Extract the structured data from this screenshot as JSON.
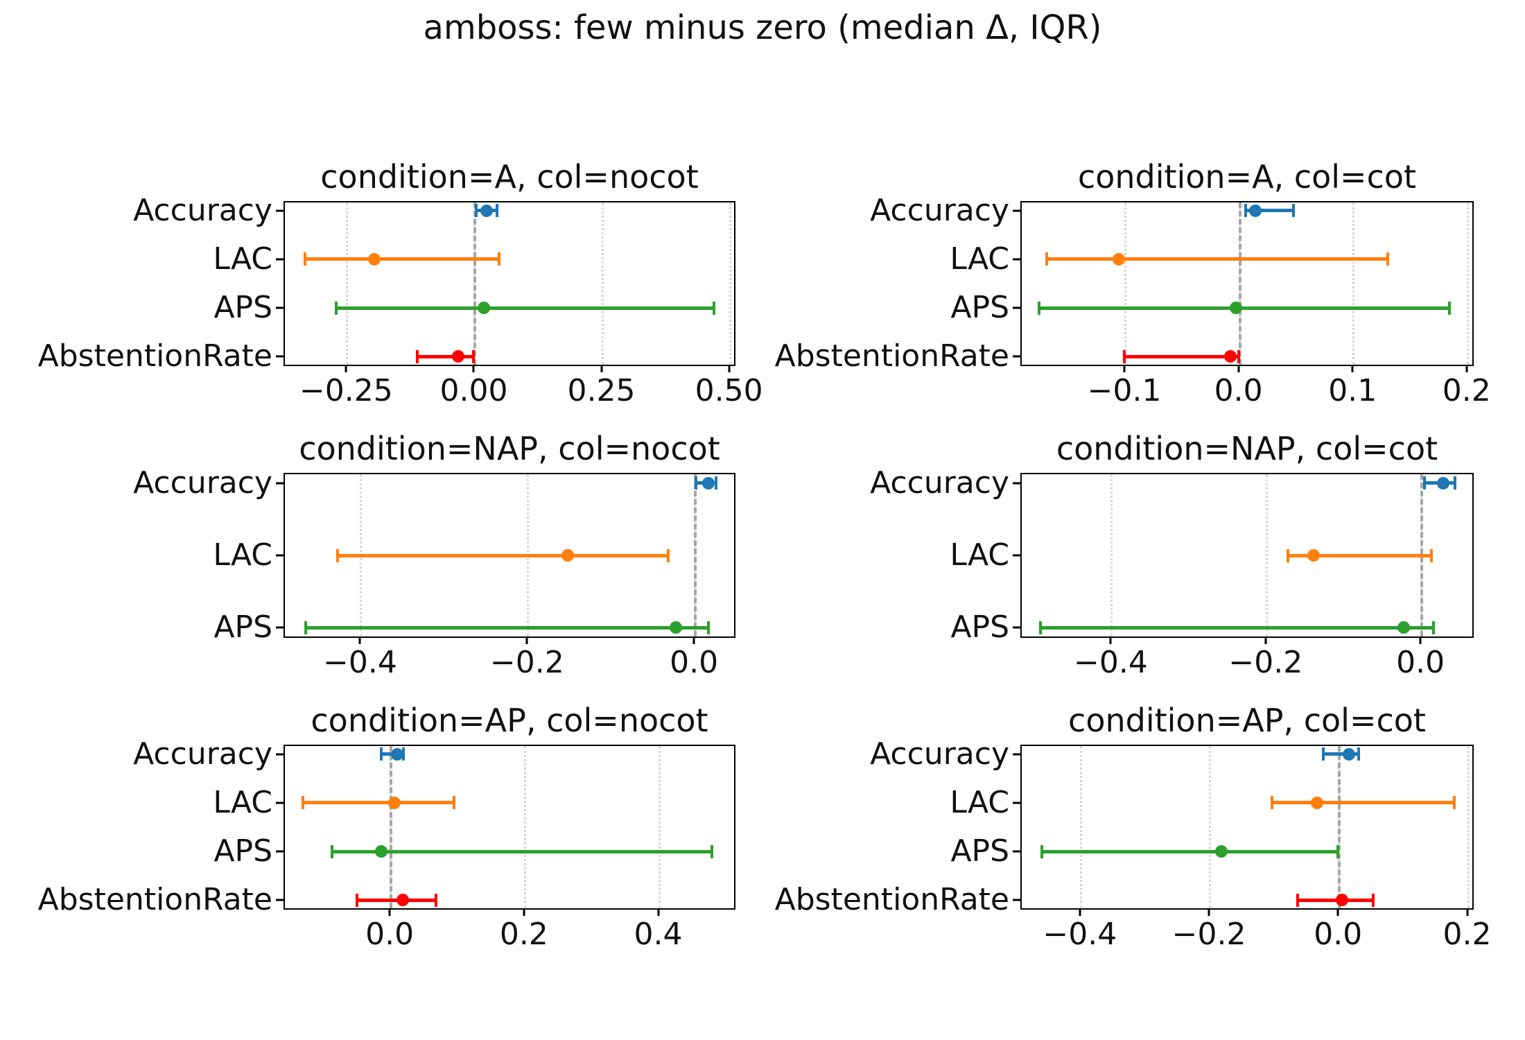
{
  "figure": {
    "suptitle": "amboss: few minus zero (median Δ, IQR)",
    "background": "#ffffff"
  },
  "colors": {
    "Accuracy": "#1f77b4",
    "LAC": "#ff7f0e",
    "APS": "#2ca02c",
    "AbstentionRate": "#ff0000",
    "zero_line": "#a6a6a6",
    "grid": "#d7d7d7",
    "spine": "#000000"
  },
  "chart_data": [
    {
      "type": "scatter",
      "subtype": "horizontal-errorbar",
      "title": "condition=A, col=nocot",
      "categories": [
        "Accuracy",
        "LAC",
        "APS",
        "AbstentionRate"
      ],
      "xlim": [
        -0.37,
        0.51
      ],
      "xticks": [
        -0.25,
        0.0,
        0.25,
        0.5
      ],
      "xtick_labels": [
        "−0.25",
        "0.00",
        "0.25",
        "0.50"
      ],
      "zero_line": 0.0,
      "grid": "dotted",
      "series": [
        {
          "name": "Accuracy",
          "median": 0.025,
          "lo": 0.005,
          "hi": 0.045
        },
        {
          "name": "LAC",
          "median": -0.195,
          "lo": -0.33,
          "hi": 0.05
        },
        {
          "name": "APS",
          "median": 0.02,
          "lo": -0.27,
          "hi": 0.47
        },
        {
          "name": "AbstentionRate",
          "median": -0.03,
          "lo": -0.11,
          "hi": 0.0
        }
      ]
    },
    {
      "type": "scatter",
      "subtype": "horizontal-errorbar",
      "title": "condition=A, col=cot",
      "categories": [
        "Accuracy",
        "LAC",
        "APS",
        "AbstentionRate"
      ],
      "xlim": [
        -0.19,
        0.205
      ],
      "xticks": [
        -0.1,
        0.0,
        0.1,
        0.2
      ],
      "xtick_labels": [
        "−0.1",
        "0.0",
        "0.1",
        "0.2"
      ],
      "zero_line": 0.0,
      "grid": "dotted",
      "series": [
        {
          "name": "Accuracy",
          "median": 0.015,
          "lo": 0.006,
          "hi": 0.048
        },
        {
          "name": "LAC",
          "median": -0.105,
          "lo": -0.168,
          "hi": 0.131
        },
        {
          "name": "APS",
          "median": -0.002,
          "lo": -0.175,
          "hi": 0.185
        },
        {
          "name": "AbstentionRate",
          "median": -0.007,
          "lo": -0.1,
          "hi": 0.0
        }
      ]
    },
    {
      "type": "scatter",
      "subtype": "horizontal-errorbar",
      "title": "condition=NAP, col=nocot",
      "categories": [
        "Accuracy",
        "LAC",
        "APS"
      ],
      "xlim": [
        -0.49,
        0.048
      ],
      "xticks": [
        -0.4,
        -0.2,
        0.0
      ],
      "xtick_labels": [
        "−0.4",
        "−0.2",
        "0.0"
      ],
      "zero_line": 0.0,
      "grid": "dotted",
      "series": [
        {
          "name": "Accuracy",
          "median": 0.017,
          "lo": 0.002,
          "hi": 0.026
        },
        {
          "name": "LAC",
          "median": -0.151,
          "lo": -0.427,
          "hi": -0.031
        },
        {
          "name": "APS",
          "median": -0.022,
          "lo": -0.465,
          "hi": 0.017
        }
      ]
    },
    {
      "type": "scatter",
      "subtype": "horizontal-errorbar",
      "title": "condition=NAP, col=cot",
      "categories": [
        "Accuracy",
        "LAC",
        "APS"
      ],
      "xlim": [
        -0.515,
        0.067
      ],
      "xticks": [
        -0.4,
        -0.2,
        0.0
      ],
      "xtick_labels": [
        "−0.4",
        "−0.2",
        "0.0"
      ],
      "zero_line": 0.0,
      "grid": "dotted",
      "series": [
        {
          "name": "Accuracy",
          "median": 0.029,
          "lo": 0.005,
          "hi": 0.045
        },
        {
          "name": "LAC",
          "median": -0.138,
          "lo": -0.171,
          "hi": 0.014
        },
        {
          "name": "APS",
          "median": -0.022,
          "lo": -0.491,
          "hi": 0.017
        }
      ]
    },
    {
      "type": "scatter",
      "subtype": "horizontal-errorbar",
      "title": "condition=AP, col=nocot",
      "categories": [
        "Accuracy",
        "LAC",
        "APS",
        "AbstentionRate"
      ],
      "xlim": [
        -0.156,
        0.513
      ],
      "xticks": [
        0.0,
        0.2,
        0.4
      ],
      "xtick_labels": [
        "0.0",
        "0.2",
        "0.4"
      ],
      "zero_line": 0.0,
      "grid": "dotted",
      "series": [
        {
          "name": "Accuracy",
          "median": 0.011,
          "lo": -0.012,
          "hi": 0.021
        },
        {
          "name": "LAC",
          "median": 0.007,
          "lo": -0.129,
          "hi": 0.096
        },
        {
          "name": "APS",
          "median": -0.013,
          "lo": -0.086,
          "hi": 0.48
        },
        {
          "name": "AbstentionRate",
          "median": 0.02,
          "lo": -0.049,
          "hi": 0.069
        }
      ]
    },
    {
      "type": "scatter",
      "subtype": "horizontal-errorbar",
      "title": "condition=AP, col=cot",
      "categories": [
        "Accuracy",
        "LAC",
        "APS",
        "AbstentionRate"
      ],
      "xlim": [
        -0.49,
        0.208
      ],
      "xticks": [
        -0.4,
        -0.2,
        0.0,
        0.2
      ],
      "xtick_labels": [
        "−0.4",
        "−0.2",
        "0.0",
        "0.2"
      ],
      "zero_line": 0.0,
      "grid": "dotted",
      "series": [
        {
          "name": "Accuracy",
          "median": 0.017,
          "lo": -0.023,
          "hi": 0.032
        },
        {
          "name": "LAC",
          "median": -0.032,
          "lo": -0.102,
          "hi": 0.18
        },
        {
          "name": "APS",
          "median": -0.181,
          "lo": -0.459,
          "hi": 0.0
        },
        {
          "name": "AbstentionRate",
          "median": 0.006,
          "lo": -0.063,
          "hi": 0.054
        }
      ]
    }
  ]
}
